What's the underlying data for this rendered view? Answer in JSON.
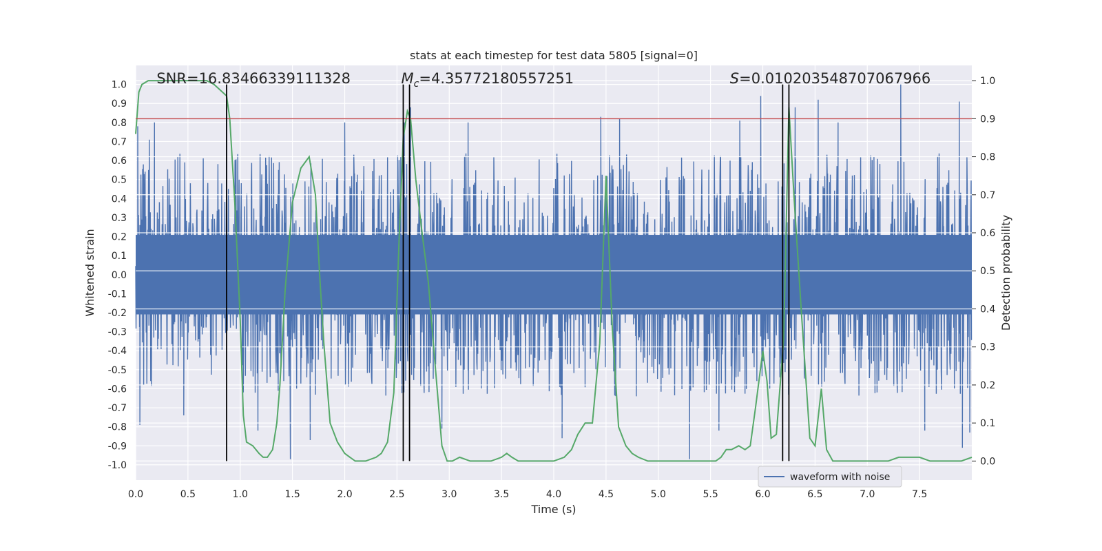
{
  "chart_data": {
    "type": "line",
    "title": "stats at each timestep for test data 5805 [signal=0]",
    "xlabel": "Time (s)",
    "ylabel": "Whitened strain",
    "ylabel_right": "Detection probability",
    "xlim": [
      0,
      8.0
    ],
    "ylim": [
      -1.08,
      1.1
    ],
    "ylim_right": [
      -0.05,
      1.04
    ],
    "x_ticks": [
      "0.0",
      "0.5",
      "1.0",
      "1.5",
      "2.0",
      "2.5",
      "3.0",
      "3.5",
      "4.0",
      "4.5",
      "5.0",
      "5.5",
      "6.0",
      "6.5",
      "7.0",
      "7.5"
    ],
    "x_tick_values": [
      0,
      0.5,
      1.0,
      1.5,
      2.0,
      2.5,
      3.0,
      3.5,
      4.0,
      4.5,
      5.0,
      5.5,
      6.0,
      6.5,
      7.0,
      7.5
    ],
    "y_ticks": [
      "1.0",
      "0.9",
      "0.8",
      "0.7",
      "0.6",
      "0.5",
      "0.4",
      "0.3",
      "0.2",
      "0.1",
      "0.0",
      "-0.1",
      "-0.2",
      "-0.3",
      "-0.4",
      "-0.5",
      "-0.6",
      "-0.7",
      "-0.8",
      "-0.9",
      "-1.0"
    ],
    "y_tick_values": [
      1.0,
      0.9,
      0.8,
      0.7,
      0.6,
      0.5,
      0.4,
      0.3,
      0.2,
      0.1,
      0.0,
      -0.1,
      -0.2,
      -0.3,
      -0.4,
      -0.5,
      -0.6,
      -0.7,
      -0.8,
      -0.9,
      -1.0
    ],
    "y_ticks_right": [
      "1.0",
      "0.9",
      "0.8",
      "0.7",
      "0.6",
      "0.5",
      "0.4",
      "0.3",
      "0.2",
      "0.1",
      "0.0"
    ],
    "y_tick_values_right": [
      1.0,
      0.9,
      0.8,
      0.7,
      0.6,
      0.5,
      0.4,
      0.3,
      0.2,
      0.1,
      0.0
    ],
    "annotations": [
      {
        "text": "SNR=16.83466339111328",
        "x": 0.2
      },
      {
        "text": "M_c=4.35772180557251",
        "prefix": "M",
        "subscript": "c",
        "rest": "=4.35772180557251",
        "x": 2.6
      },
      {
        "text": "S=0.010203548707067966",
        "prefix": "S",
        "rest": "=0.010203548707067966",
        "x": 5.6
      }
    ],
    "threshold_line": {
      "y_right": 0.9,
      "color": "#c44e52"
    },
    "vertical_lines": {
      "x": [
        0.87,
        2.56,
        2.62,
        6.19,
        6.25
      ],
      "y_from": -0.98,
      "y_to": 1.0,
      "color": "#000000"
    },
    "series": [
      {
        "name": "waveform with noise",
        "axis": "left",
        "color": "#4c72b0",
        "kind": "dense-noise",
        "duration_s": 8.0,
        "samples_shown": 2400,
        "core_amplitude": 0.22,
        "typical_peak": 0.52,
        "notable_peaks": [
          {
            "x": 0.02,
            "y": 0.78
          },
          {
            "x": 0.04,
            "y": -0.79
          },
          {
            "x": 0.13,
            "y": 0.71
          },
          {
            "x": 0.18,
            "y": 0.8
          },
          {
            "x": 0.46,
            "y": -0.74
          },
          {
            "x": 0.87,
            "y": 0.88
          },
          {
            "x": 1.17,
            "y": -0.82
          },
          {
            "x": 1.48,
            "y": -0.97
          },
          {
            "x": 1.67,
            "y": -0.87
          },
          {
            "x": 2.0,
            "y": 0.8
          },
          {
            "x": 2.57,
            "y": 0.8
          },
          {
            "x": 2.63,
            "y": 0.88
          },
          {
            "x": 2.93,
            "y": -0.81
          },
          {
            "x": 3.18,
            "y": 0.8
          },
          {
            "x": 4.08,
            "y": -0.86
          },
          {
            "x": 4.45,
            "y": 0.83
          },
          {
            "x": 4.63,
            "y": 0.82
          },
          {
            "x": 5.3,
            "y": -0.97
          },
          {
            "x": 5.58,
            "y": -0.82
          },
          {
            "x": 5.78,
            "y": 0.81
          },
          {
            "x": 5.98,
            "y": 0.94
          },
          {
            "x": 6.31,
            "y": 0.88
          },
          {
            "x": 6.53,
            "y": 0.92
          },
          {
            "x": 6.72,
            "y": 0.8
          },
          {
            "x": 7.32,
            "y": 1.0
          },
          {
            "x": 7.55,
            "y": -0.82
          },
          {
            "x": 7.88,
            "y": 0.91
          },
          {
            "x": 7.91,
            "y": -0.91
          },
          {
            "x": 7.98,
            "y": -0.83
          }
        ]
      },
      {
        "name": "detection probability",
        "axis": "right",
        "color": "#55a868",
        "x": [
          0.0,
          0.03,
          0.06,
          0.12,
          0.2,
          0.3,
          0.4,
          0.5,
          0.6,
          0.68,
          0.75,
          0.87,
          0.9,
          0.95,
          1.0,
          1.03,
          1.06,
          1.12,
          1.18,
          1.22,
          1.26,
          1.31,
          1.35,
          1.38,
          1.43,
          1.5,
          1.58,
          1.66,
          1.72,
          1.76,
          1.8,
          1.86,
          1.93,
          2.0,
          2.05,
          2.1,
          2.2,
          2.3,
          2.35,
          2.41,
          2.47,
          2.52,
          2.56,
          2.6,
          2.63,
          2.68,
          2.74,
          2.8,
          2.86,
          2.93,
          2.98,
          3.03,
          3.1,
          3.2,
          3.3,
          3.4,
          3.5,
          3.55,
          3.6,
          3.66,
          3.73,
          3.8,
          3.9,
          4.0,
          4.1,
          4.17,
          4.23,
          4.3,
          4.37,
          4.44,
          4.5,
          4.56,
          4.62,
          4.69,
          4.75,
          4.81,
          4.9,
          5.0,
          5.1,
          5.2,
          5.3,
          5.4,
          5.5,
          5.55,
          5.6,
          5.65,
          5.7,
          5.77,
          5.83,
          5.88,
          5.93,
          6.0,
          6.04,
          6.08,
          6.13,
          6.2,
          6.25,
          6.3,
          6.37,
          6.45,
          6.5,
          6.56,
          6.61,
          6.67,
          6.74,
          6.81,
          6.9,
          7.0,
          7.1,
          7.2,
          7.3,
          7.4,
          7.5,
          7.6,
          7.7,
          7.8,
          7.9,
          8.0
        ],
        "y": [
          0.86,
          0.97,
          0.99,
          1.0,
          1.0,
          1.0,
          1.0,
          1.0,
          1.0,
          1.0,
          0.99,
          0.96,
          0.9,
          0.67,
          0.37,
          0.12,
          0.05,
          0.04,
          0.02,
          0.01,
          0.01,
          0.03,
          0.1,
          0.2,
          0.45,
          0.68,
          0.77,
          0.8,
          0.7,
          0.49,
          0.31,
          0.1,
          0.05,
          0.02,
          0.01,
          0.0,
          0.0,
          0.01,
          0.02,
          0.05,
          0.18,
          0.58,
          0.85,
          0.92,
          0.9,
          0.74,
          0.6,
          0.47,
          0.27,
          0.04,
          0.0,
          0.0,
          0.01,
          0.0,
          0.0,
          0.0,
          0.01,
          0.02,
          0.01,
          0.0,
          0.0,
          0.0,
          0.0,
          0.0,
          0.01,
          0.03,
          0.07,
          0.1,
          0.1,
          0.31,
          0.75,
          0.35,
          0.09,
          0.04,
          0.02,
          0.01,
          0.0,
          0.0,
          0.0,
          0.0,
          0.0,
          0.0,
          0.0,
          0.0,
          0.01,
          0.03,
          0.03,
          0.04,
          0.03,
          0.04,
          0.14,
          0.29,
          0.21,
          0.06,
          0.07,
          0.32,
          0.93,
          0.69,
          0.39,
          0.06,
          0.04,
          0.19,
          0.03,
          0.0,
          0.0,
          0.0,
          0.0,
          0.0,
          0.0,
          0.0,
          0.01,
          0.01,
          0.01,
          0.0,
          0.0,
          0.0,
          0.0,
          0.01
        ]
      }
    ],
    "legend": {
      "label": "waveform with noise",
      "placement": "bottom-center-right"
    }
  }
}
